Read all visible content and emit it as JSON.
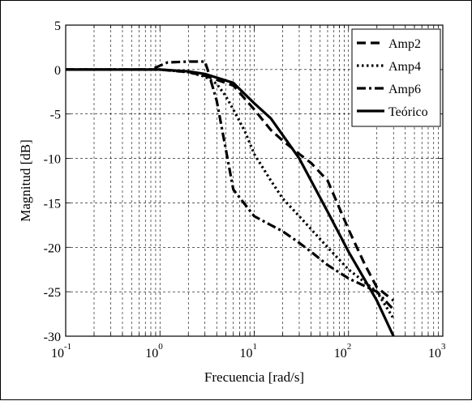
{
  "chart_data": {
    "type": "line",
    "title": "",
    "xlabel": "Frecuencia [rad/s]",
    "ylabel": "Magnitud [dB]",
    "xscale": "log",
    "xlim": [
      0.1,
      1000
    ],
    "ylim": [
      -30,
      5
    ],
    "grid": true,
    "legend_position": "top-right",
    "x_ticks": [
      {
        "base": "10",
        "exp": "-1",
        "value": 0.1
      },
      {
        "base": "10",
        "exp": "0",
        "value": 1
      },
      {
        "base": "10",
        "exp": "1",
        "value": 10
      },
      {
        "base": "10",
        "exp": "2",
        "value": 100
      },
      {
        "base": "10",
        "exp": "3",
        "value": 1000
      }
    ],
    "y_ticks": [
      {
        "label": "5",
        "value": 5
      },
      {
        "label": "0",
        "value": 0
      },
      {
        "label": "-5",
        "value": -5
      },
      {
        "label": "-10",
        "value": -10
      },
      {
        "label": "-15",
        "value": -15
      },
      {
        "label": "-20",
        "value": -20
      },
      {
        "label": "-25",
        "value": -25
      },
      {
        "label": "-30",
        "value": -30
      }
    ],
    "series": [
      {
        "name": "Amp2",
        "style": "dashed",
        "x": [
          0.1,
          0.3,
          1,
          2,
          3,
          6,
          10,
          15,
          20,
          30,
          40,
          60,
          100,
          150,
          200,
          300
        ],
        "y": [
          0,
          0,
          0,
          -0.3,
          -0.7,
          -1.8,
          -4.5,
          -6.8,
          -8,
          -9.5,
          -10.5,
          -12.5,
          -18,
          -22,
          -24.5,
          -26
        ]
      },
      {
        "name": "Amp4",
        "style": "dotted",
        "x": [
          0.1,
          0.3,
          1,
          2,
          3,
          4,
          5,
          6,
          8,
          10,
          15,
          20,
          30,
          60,
          100,
          200,
          300
        ],
        "y": [
          0,
          0,
          0,
          -0.3,
          -0.8,
          -1.6,
          -3,
          -4.5,
          -7,
          -9.5,
          -12.5,
          -14.5,
          -16.5,
          -20,
          -22.5,
          -25,
          -28
        ]
      },
      {
        "name": "Amp6",
        "style": "dashdot",
        "x": [
          0.1,
          0.3,
          0.8,
          1.2,
          2,
          3,
          3.2,
          4,
          5,
          6,
          10,
          15,
          20,
          30,
          40,
          60,
          100,
          200,
          300
        ],
        "y": [
          0,
          0,
          0,
          0.8,
          0.9,
          0.9,
          0,
          -3.5,
          -9,
          -13.5,
          -16.5,
          -17.5,
          -18.2,
          -19.5,
          -20.5,
          -22,
          -23.5,
          -25,
          -27
        ]
      },
      {
        "name": "Teórico",
        "style": "solid",
        "x": [
          0.1,
          0.3,
          1,
          2,
          3,
          6,
          10,
          15,
          30,
          60,
          100,
          200,
          300
        ],
        "y": [
          0,
          0,
          0,
          -0.2,
          -0.5,
          -1.5,
          -3.8,
          -5.5,
          -10,
          -16,
          -20.5,
          -26,
          -30
        ]
      }
    ]
  }
}
